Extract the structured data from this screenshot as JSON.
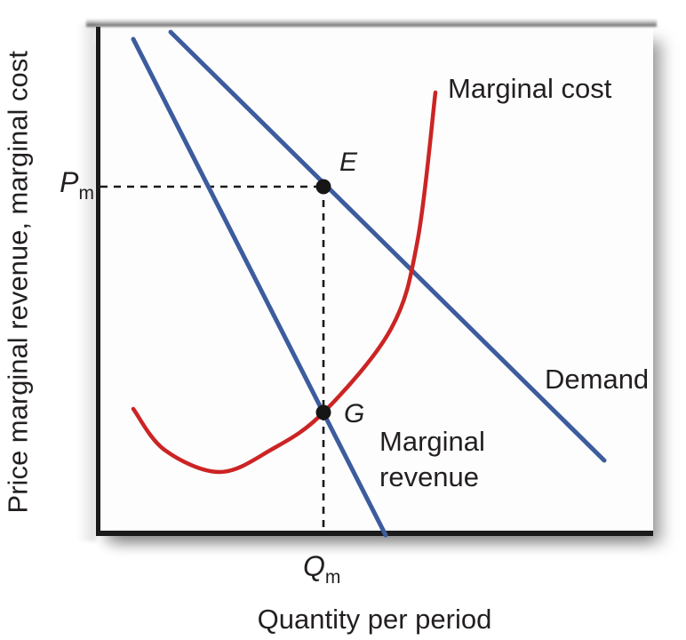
{
  "figure": {
    "kind": "monopoly-price-output-diagram",
    "background": "#ffffff"
  },
  "axes": {
    "ylabel": "Price marginal revenue, marginal cost",
    "xlabel": "Quantity per period",
    "y_tick": {
      "main": "P",
      "sub": "m"
    },
    "x_tick": {
      "main": "Q",
      "sub": "m"
    }
  },
  "labels": {
    "marginal_cost": "Marginal cost",
    "demand": "Demand",
    "marginal_revenue": "Marginal\nrevenue"
  },
  "colors": {
    "curve_blue": "#3d5c9e",
    "curve_red": "#cc2424",
    "axis_black": "#1b1b1b",
    "guide_black": "#1a1a1a",
    "text": "#231f20"
  },
  "chart_data": {
    "type": "line",
    "title": "",
    "xlabel": "Quantity per period",
    "ylabel": "Price marginal revenue, marginal cost",
    "axes_quantitative": false,
    "coordinate_units": "pixel-anchors (772x720 canvas)",
    "legend_position": "labels-inline",
    "grid": false,
    "series": [
      {
        "name": "Demand",
        "color": "#3d5c9e",
        "shape": "straight",
        "width": 5,
        "points": [
          [
            192,
            36
          ],
          [
            680,
            518
          ]
        ]
      },
      {
        "name": "Marginal revenue",
        "color": "#3d5c9e",
        "shape": "straight",
        "width": 5,
        "points": [
          [
            150,
            44
          ],
          [
            434,
            602
          ]
        ]
      },
      {
        "name": "Marginal cost",
        "color": "#cc2424",
        "shape": "smooth",
        "width": 4.5,
        "points": [
          [
            150,
            460
          ],
          [
            185,
            506
          ],
          [
            247,
            531
          ],
          [
            305,
            506
          ],
          [
            364,
            464
          ],
          [
            440,
            370
          ],
          [
            470,
            270
          ],
          [
            490,
            104
          ]
        ]
      }
    ],
    "markers": [
      {
        "label": "E",
        "x": 364,
        "y": 210
      },
      {
        "label": "G",
        "x": 364,
        "y": 464
      }
    ],
    "guides": [
      {
        "name": "price-guide",
        "points": [
          [
            113,
            210
          ],
          [
            364,
            210
          ]
        ]
      },
      {
        "name": "quantity-guide",
        "points": [
          [
            364,
            210
          ],
          [
            364,
            599
          ]
        ]
      }
    ]
  }
}
